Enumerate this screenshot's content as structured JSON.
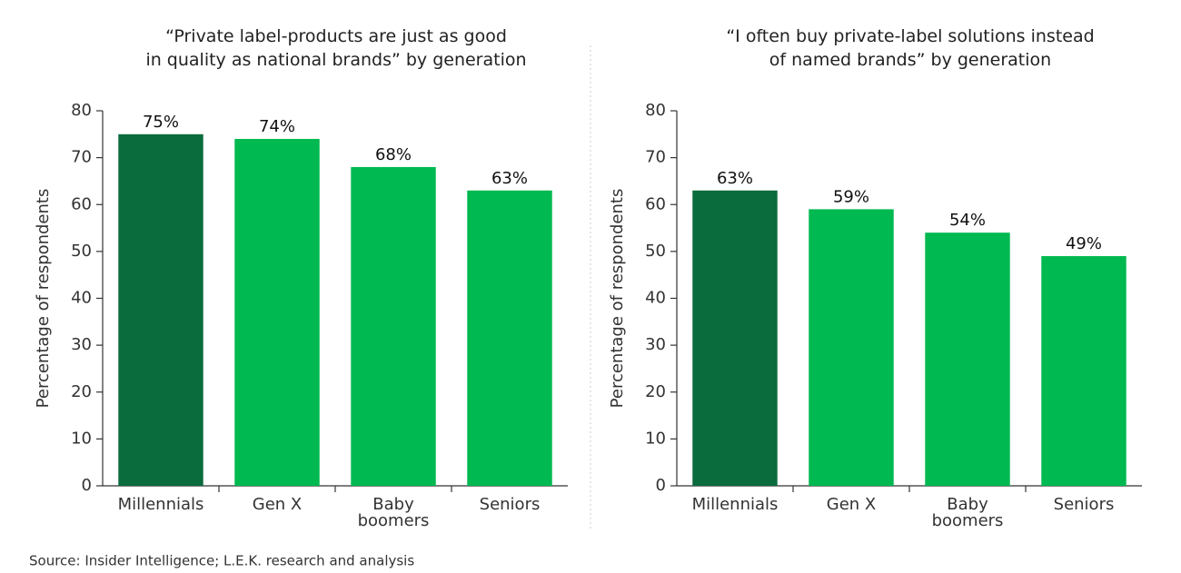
{
  "chart_data": [
    {
      "type": "bar",
      "title": "“Private label-products are just as good\nin quality as national brands” by generation",
      "ylabel": "Percentage of respondents",
      "categories": [
        "Millennials",
        "Gen X",
        "Baby\nboomers",
        "Seniors"
      ],
      "values": [
        75,
        74,
        68,
        63
      ],
      "value_labels": [
        "75%",
        "74%",
        "68%",
        "63%"
      ],
      "colors": [
        "#0a6b3d",
        "#00b950",
        "#00b950",
        "#00b950"
      ],
      "ylim": [
        0,
        80
      ],
      "yticks": [
        0,
        10,
        20,
        30,
        40,
        50,
        60,
        70,
        80
      ]
    },
    {
      "type": "bar",
      "title": "“I often buy private-label solutions instead\nof named brands” by generation",
      "ylabel": "Percentage of respondents",
      "categories": [
        "Millennials",
        "Gen X",
        "Baby\nboomers",
        "Seniors"
      ],
      "values": [
        63,
        59,
        54,
        49
      ],
      "value_labels": [
        "63%",
        "59%",
        "54%",
        "49%"
      ],
      "colors": [
        "#0a6b3d",
        "#00b950",
        "#00b950",
        "#00b950"
      ],
      "ylim": [
        0,
        80
      ],
      "yticks": [
        0,
        10,
        20,
        30,
        40,
        50,
        60,
        70,
        80
      ]
    }
  ],
  "source": "Source: Insider Intelligence; L.E.K. research and analysis"
}
